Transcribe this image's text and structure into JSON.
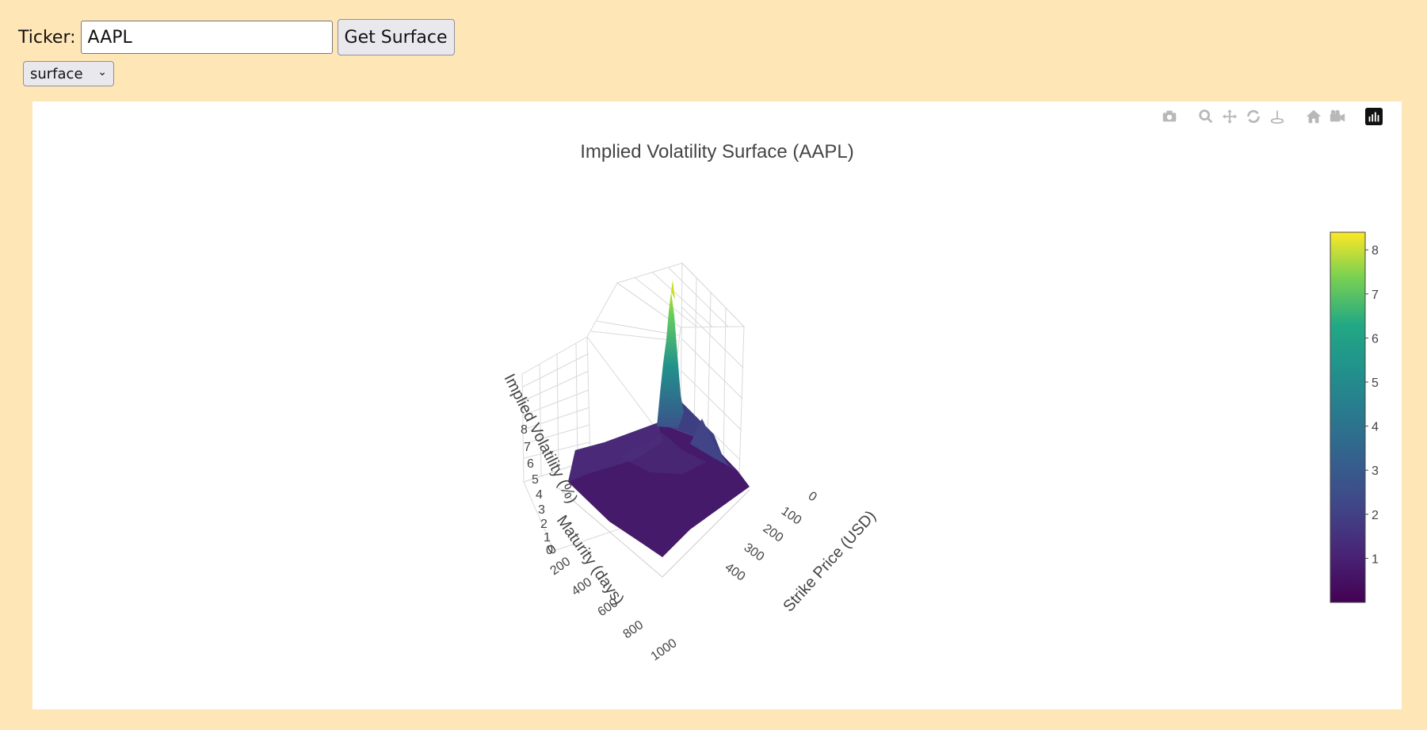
{
  "controls": {
    "ticker_label": "Ticker:",
    "ticker_value": "AAPL",
    "get_button": "Get Surface",
    "plot_type": "surface"
  },
  "modebar": [
    "camera-icon",
    "zoom-icon",
    "pan-icon",
    "orbit-icon",
    "turntable-icon",
    "home-icon",
    "camera-last-save-icon",
    "plotly-logo-icon"
  ],
  "chart_data": {
    "type": "surface",
    "title": "Implied Volatility Surface (AAPL)",
    "axes": {
      "x": {
        "label": "Strike Price (USD)",
        "ticks": [
          "0",
          "100",
          "200",
          "300",
          "400"
        ]
      },
      "y": {
        "label": "Maturity (days)",
        "ticks": [
          "0",
          "200",
          "400",
          "600",
          "800",
          "1000"
        ]
      },
      "z": {
        "label": "Implied Volatility (%)",
        "ticks": [
          "0",
          "1",
          "2",
          "3",
          "4",
          "5",
          "6",
          "7",
          "8"
        ]
      }
    },
    "colorbar": {
      "ticks": [
        "1",
        "2",
        "3",
        "4",
        "5",
        "6",
        "7",
        "8"
      ],
      "range": [
        0,
        8.4
      ],
      "colorscale": "viridis"
    },
    "peak": {
      "strike": 0,
      "maturity": 0,
      "iv": 8.4
    }
  }
}
